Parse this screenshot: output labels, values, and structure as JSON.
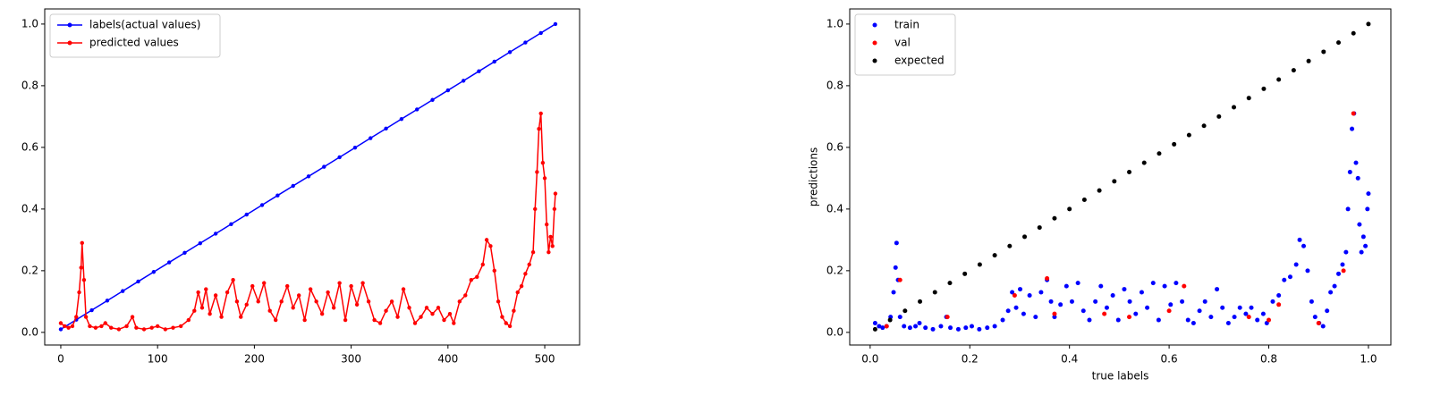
{
  "chart_data": [
    {
      "type": "line",
      "legend": "upper left",
      "xlim": [
        -16.6,
        536
      ],
      "ylim": [
        -0.041,
        1.049
      ],
      "xticks": [
        0,
        100,
        200,
        300,
        400,
        500
      ],
      "yticks": [
        {
          "value": 0,
          "label": "0.0"
        },
        0.2,
        0.4,
        0.6,
        0.8,
        {
          "value": 1,
          "label": "1.0"
        }
      ],
      "series": [
        {
          "name": "labels(actual values)",
          "color": "#0000ff",
          "x": [
            0,
            16,
            32,
            48,
            64,
            80,
            96,
            112,
            128,
            144,
            160,
            176,
            192,
            208,
            224,
            240,
            256,
            272,
            288,
            304,
            320,
            336,
            352,
            368,
            384,
            400,
            416,
            432,
            448,
            464,
            480,
            496,
            511
          ],
          "values": [
            0.01,
            0.041,
            0.072,
            0.103,
            0.134,
            0.165,
            0.196,
            0.227,
            0.258,
            0.289,
            0.32,
            0.351,
            0.382,
            0.413,
            0.444,
            0.475,
            0.506,
            0.537,
            0.568,
            0.599,
            0.63,
            0.661,
            0.692,
            0.723,
            0.754,
            0.785,
            0.816,
            0.847,
            0.878,
            0.909,
            0.94,
            0.971,
            1.0
          ]
        },
        {
          "name": "predicted values",
          "color": "#ff0000",
          "x": [
            0,
            4,
            8,
            12,
            16,
            19,
            21,
            22,
            24,
            26,
            30,
            36,
            42,
            46,
            52,
            60,
            68,
            74,
            78,
            86,
            94,
            100,
            108,
            116,
            124,
            132,
            138,
            142,
            146,
            150,
            154,
            160,
            166,
            172,
            178,
            182,
            186,
            192,
            198,
            204,
            210,
            216,
            222,
            228,
            234,
            240,
            246,
            252,
            258,
            264,
            270,
            276,
            282,
            288,
            294,
            300,
            306,
            312,
            318,
            324,
            330,
            336,
            342,
            348,
            354,
            360,
            366,
            372,
            378,
            384,
            390,
            396,
            402,
            406,
            412,
            418,
            424,
            430,
            436,
            440,
            444,
            448,
            452,
            456,
            460,
            464,
            468,
            472,
            476,
            480,
            484,
            488,
            490,
            492,
            494,
            496,
            498,
            500,
            502,
            504,
            506,
            508,
            510,
            511
          ],
          "values": [
            0.03,
            0.02,
            0.015,
            0.02,
            0.05,
            0.13,
            0.21,
            0.29,
            0.17,
            0.05,
            0.02,
            0.015,
            0.02,
            0.03,
            0.015,
            0.01,
            0.02,
            0.05,
            0.015,
            0.01,
            0.015,
            0.02,
            0.01,
            0.015,
            0.02,
            0.04,
            0.07,
            0.13,
            0.08,
            0.14,
            0.06,
            0.12,
            0.05,
            0.13,
            0.17,
            0.1,
            0.05,
            0.09,
            0.15,
            0.1,
            0.16,
            0.07,
            0.04,
            0.1,
            0.15,
            0.08,
            0.12,
            0.04,
            0.14,
            0.1,
            0.06,
            0.13,
            0.08,
            0.16,
            0.04,
            0.15,
            0.09,
            0.16,
            0.1,
            0.04,
            0.03,
            0.07,
            0.1,
            0.05,
            0.14,
            0.08,
            0.03,
            0.05,
            0.08,
            0.06,
            0.08,
            0.04,
            0.06,
            0.03,
            0.1,
            0.12,
            0.17,
            0.18,
            0.22,
            0.3,
            0.28,
            0.2,
            0.1,
            0.05,
            0.03,
            0.02,
            0.07,
            0.13,
            0.15,
            0.19,
            0.22,
            0.26,
            0.4,
            0.52,
            0.66,
            0.71,
            0.55,
            0.5,
            0.35,
            0.26,
            0.31,
            0.28,
            0.4,
            0.45
          ]
        }
      ]
    },
    {
      "type": "scatter",
      "legend": "upper left",
      "xlabel": "true labels",
      "ylabel": "predictions",
      "xlim": [
        -0.041,
        1.045
      ],
      "ylim": [
        -0.041,
        1.049
      ],
      "xticks": [
        {
          "value": 0,
          "label": "0.0"
        },
        0.2,
        0.4,
        0.6,
        0.8,
        {
          "value": 1,
          "label": "1.0"
        }
      ],
      "yticks": [
        {
          "value": 0,
          "label": "0.0"
        },
        0.2,
        0.4,
        0.6,
        0.8,
        {
          "value": 1,
          "label": "1.0"
        }
      ],
      "series": [
        {
          "name": "train",
          "color": "#0000ff",
          "x": [
            0.01,
            0.018,
            0.025,
            0.033,
            0.041,
            0.047,
            0.051,
            0.053,
            0.056,
            0.06,
            0.068,
            0.08,
            0.091,
            0.099,
            0.111,
            0.126,
            0.142,
            0.153,
            0.161,
            0.177,
            0.192,
            0.204,
            0.219,
            0.235,
            0.25,
            0.266,
            0.277,
            0.285,
            0.293,
            0.301,
            0.308,
            0.32,
            0.332,
            0.343,
            0.355,
            0.363,
            0.37,
            0.382,
            0.394,
            0.405,
            0.417,
            0.428,
            0.44,
            0.452,
            0.463,
            0.475,
            0.487,
            0.498,
            0.51,
            0.521,
            0.533,
            0.545,
            0.556,
            0.568,
            0.579,
            0.591,
            0.603,
            0.614,
            0.626,
            0.638,
            0.649,
            0.661,
            0.672,
            0.684,
            0.696,
            0.707,
            0.719,
            0.731,
            0.742,
            0.754,
            0.765,
            0.777,
            0.789,
            0.796,
            0.808,
            0.82,
            0.831,
            0.843,
            0.855,
            0.862,
            0.87,
            0.878,
            0.886,
            0.893,
            0.901,
            0.909,
            0.917,
            0.924,
            0.932,
            0.94,
            0.948,
            0.955,
            0.959,
            0.963,
            0.967,
            0.971,
            0.975,
            0.979,
            0.982,
            0.986,
            0.99,
            0.994,
            0.998,
            1.0
          ],
          "values": [
            0.03,
            0.02,
            0.015,
            0.02,
            0.05,
            0.13,
            0.21,
            0.29,
            0.17,
            0.05,
            0.02,
            0.015,
            0.02,
            0.03,
            0.015,
            0.01,
            0.02,
            0.05,
            0.015,
            0.01,
            0.015,
            0.02,
            0.01,
            0.015,
            0.02,
            0.04,
            0.07,
            0.13,
            0.08,
            0.14,
            0.06,
            0.12,
            0.05,
            0.13,
            0.17,
            0.1,
            0.05,
            0.09,
            0.15,
            0.1,
            0.16,
            0.07,
            0.04,
            0.1,
            0.15,
            0.08,
            0.12,
            0.04,
            0.14,
            0.1,
            0.06,
            0.13,
            0.08,
            0.16,
            0.04,
            0.15,
            0.09,
            0.16,
            0.1,
            0.04,
            0.03,
            0.07,
            0.1,
            0.05,
            0.14,
            0.08,
            0.03,
            0.05,
            0.08,
            0.06,
            0.08,
            0.04,
            0.06,
            0.03,
            0.1,
            0.12,
            0.17,
            0.18,
            0.22,
            0.3,
            0.28,
            0.2,
            0.1,
            0.05,
            0.03,
            0.02,
            0.07,
            0.13,
            0.15,
            0.19,
            0.22,
            0.26,
            0.4,
            0.52,
            0.66,
            0.71,
            0.55,
            0.5,
            0.35,
            0.26,
            0.31,
            0.28,
            0.4,
            0.45
          ]
        },
        {
          "name": "val",
          "color": "#ff0000",
          "x": [
            0.033,
            0.06,
            0.155,
            0.29,
            0.355,
            0.37,
            0.47,
            0.52,
            0.6,
            0.63,
            0.76,
            0.8,
            0.82,
            0.9,
            0.95,
            0.97
          ],
          "values": [
            0.02,
            0.17,
            0.05,
            0.12,
            0.175,
            0.06,
            0.06,
            0.05,
            0.07,
            0.15,
            0.05,
            0.04,
            0.09,
            0.03,
            0.2,
            0.71
          ]
        },
        {
          "name": "expected",
          "color": "#000000",
          "x": [
            0.01,
            0.04,
            0.07,
            0.1,
            0.13,
            0.16,
            0.19,
            0.22,
            0.25,
            0.28,
            0.31,
            0.34,
            0.37,
            0.4,
            0.43,
            0.46,
            0.49,
            0.52,
            0.55,
            0.58,
            0.61,
            0.64,
            0.67,
            0.7,
            0.73,
            0.76,
            0.79,
            0.82,
            0.85,
            0.88,
            0.91,
            0.94,
            0.97,
            1.0
          ],
          "values": [
            0.01,
            0.04,
            0.07,
            0.1,
            0.13,
            0.16,
            0.19,
            0.22,
            0.25,
            0.28,
            0.31,
            0.34,
            0.37,
            0.4,
            0.43,
            0.46,
            0.49,
            0.52,
            0.55,
            0.58,
            0.61,
            0.64,
            0.67,
            0.7,
            0.73,
            0.76,
            0.79,
            0.82,
            0.85,
            0.88,
            0.91,
            0.94,
            0.97,
            1.0
          ]
        }
      ]
    }
  ]
}
